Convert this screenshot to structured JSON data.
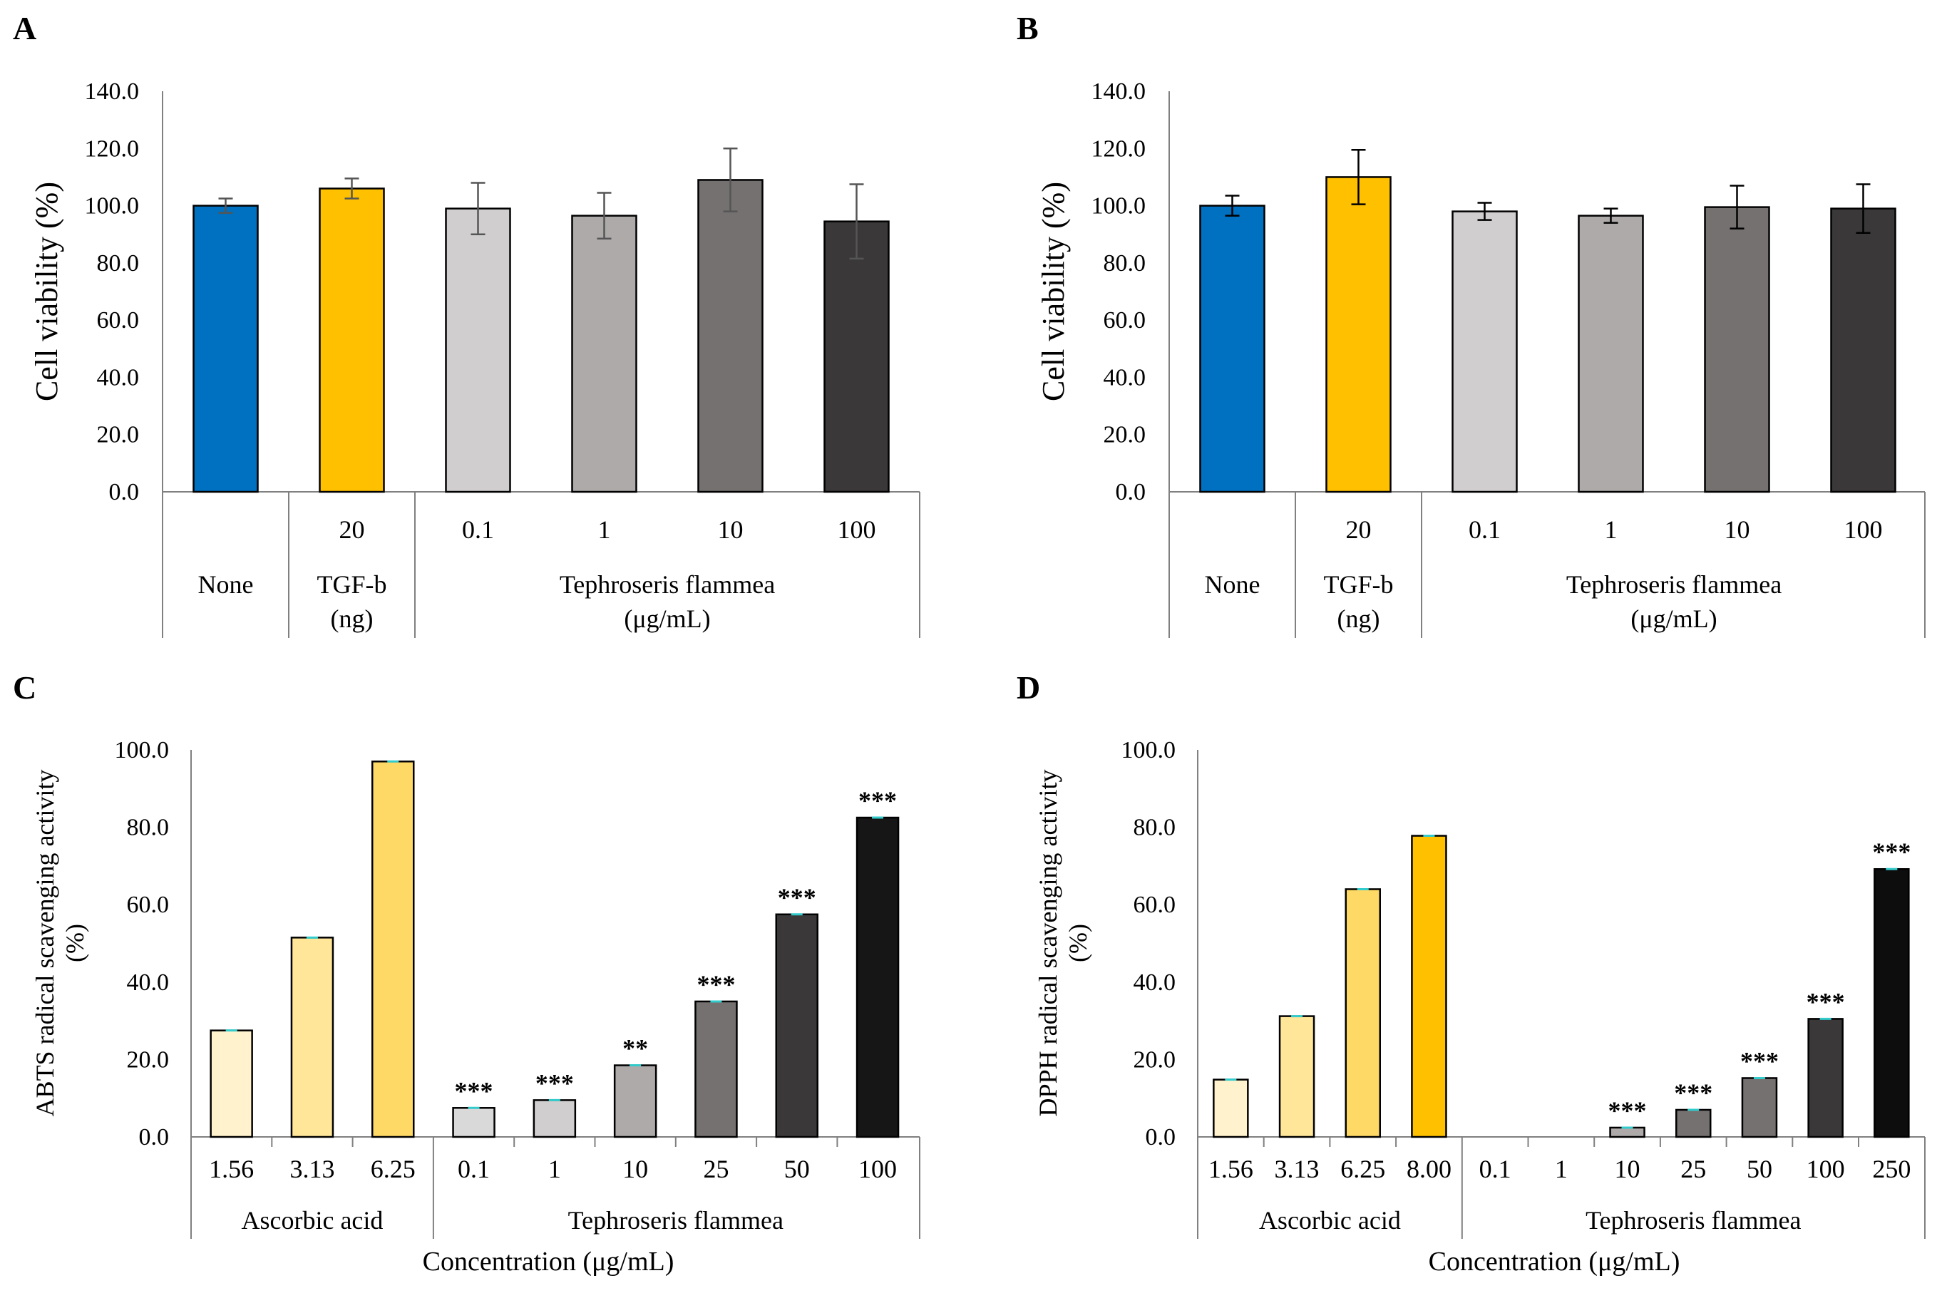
{
  "chart_data": [
    {
      "id": "A",
      "type": "bar",
      "panel_label": "A",
      "title": "",
      "ylabel": "Cell viability (%)",
      "ylim": [
        0,
        140
      ],
      "yticks": [
        "0.0",
        "20.0",
        "40.0",
        "60.0",
        "80.0",
        "100.0",
        "120.0",
        "140.0"
      ],
      "categories": [
        "None",
        "20",
        "0.1",
        "1",
        "10",
        "100"
      ],
      "values": [
        100.0,
        106.0,
        99.0,
        96.5,
        109.0,
        94.5
      ],
      "errors": [
        2.5,
        3.5,
        9.0,
        8.0,
        11.0,
        13.0
      ],
      "colors": [
        "#0070C0",
        "#FFC000",
        "#D0CECE",
        "#AEAAAA",
        "#767171",
        "#3A3838"
      ],
      "groups": [
        {
          "label": "None",
          "sublabel": "",
          "span": [
            0,
            0
          ]
        },
        {
          "label": "TGF-b",
          "sublabel": "(ng)",
          "span": [
            1,
            1
          ]
        },
        {
          "label": "Tephroseris flammea",
          "sublabel": "(μg/mL)",
          "span": [
            2,
            5
          ]
        }
      ],
      "stars": [
        "",
        "",
        "",
        "",
        "",
        ""
      ],
      "xlabel": ""
    },
    {
      "id": "B",
      "type": "bar",
      "panel_label": "B",
      "title": "",
      "ylabel": "Cell viability (%)",
      "ylim": [
        0,
        140
      ],
      "yticks": [
        "0.0",
        "20.0",
        "40.0",
        "60.0",
        "80.0",
        "100.0",
        "120.0",
        "140.0"
      ],
      "categories": [
        "None",
        "20",
        "0.1",
        "1",
        "10",
        "100"
      ],
      "values": [
        100.0,
        110.0,
        98.0,
        96.5,
        99.5,
        99.0
      ],
      "errors": [
        3.5,
        9.5,
        3.0,
        2.5,
        7.5,
        8.5
      ],
      "colors": [
        "#0070C0",
        "#FFC000",
        "#D0CECE",
        "#AEAAAA",
        "#767171",
        "#3A3838"
      ],
      "groups": [
        {
          "label": "None",
          "sublabel": "",
          "span": [
            0,
            0
          ]
        },
        {
          "label": "TGF-b",
          "sublabel": "(ng)",
          "span": [
            1,
            1
          ]
        },
        {
          "label": "Tephroseris flammea",
          "sublabel": "(μg/mL)",
          "span": [
            2,
            5
          ]
        }
      ],
      "stars": [
        "",
        "",
        "",
        "",
        "",
        ""
      ],
      "xlabel": ""
    },
    {
      "id": "C",
      "type": "bar",
      "panel_label": "C",
      "title": "",
      "ylabel": "ABTS radical scavenging activity",
      "ylabel2": "(%)",
      "ylim": [
        0,
        100
      ],
      "yticks": [
        "0.0",
        "20.0",
        "40.0",
        "60.0",
        "80.0",
        "100.0"
      ],
      "categories": [
        "1.56",
        "3.13",
        "6.25",
        "0.1",
        "1",
        "10",
        "25",
        "50",
        "100"
      ],
      "values": [
        27.5,
        51.5,
        97.0,
        7.5,
        9.5,
        18.5,
        35.0,
        57.5,
        82.5
      ],
      "errors": [
        0.3,
        0.3,
        0.3,
        0.3,
        0.3,
        0.3,
        0.3,
        0.3,
        0.3
      ],
      "colors": [
        "#FFF2CC",
        "#FFE699",
        "#FFD966",
        "#D9D9D9",
        "#D0CECE",
        "#AEAAAA",
        "#767171",
        "#3A3838",
        "#161616"
      ],
      "groups": [
        {
          "label": "Ascorbic acid",
          "sublabel": "",
          "span": [
            0,
            2
          ]
        },
        {
          "label": "Tephroseris flammea",
          "sublabel": "",
          "span": [
            3,
            8
          ]
        }
      ],
      "stars": [
        "",
        "",
        "",
        "***",
        "***",
        "**",
        "***",
        "***",
        "***"
      ],
      "xlabel": "Concentration (μg/mL)"
    },
    {
      "id": "D",
      "type": "bar",
      "panel_label": "D",
      "title": "",
      "ylabel": "DPPH radical scavenging activity",
      "ylabel2": "(%)",
      "ylim": [
        0,
        100
      ],
      "yticks": [
        "0.0",
        "20.0",
        "40.0",
        "60.0",
        "80.0",
        "100.0"
      ],
      "categories": [
        "1.56",
        "3.13",
        "6.25",
        "8.00",
        "0.1",
        "1",
        "10",
        "25",
        "50",
        "100",
        "250"
      ],
      "values": [
        14.8,
        31.2,
        64.0,
        77.8,
        0.0,
        0.0,
        2.4,
        7.0,
        15.2,
        30.5,
        69.2
      ],
      "errors": [
        0.3,
        0.3,
        0.3,
        0.3,
        0.0,
        0.0,
        0.3,
        0.3,
        0.3,
        0.3,
        0.3
      ],
      "colors": [
        "#FFF2CC",
        "#FFE699",
        "#FFD966",
        "#FFC000",
        "#D9D9D9",
        "#D0CECE",
        "#AEAAAA",
        "#767171",
        "#767171",
        "#3A3838",
        "#0D0D0D"
      ],
      "groups": [
        {
          "label": "Ascorbic acid",
          "sublabel": "",
          "span": [
            0,
            3
          ]
        },
        {
          "label": "Tephroseris flammea",
          "sublabel": "",
          "span": [
            4,
            10
          ]
        }
      ],
      "stars": [
        "",
        "",
        "",
        "",
        "",
        "",
        "***",
        "***",
        "***",
        "***",
        "***"
      ],
      "xlabel": "Concentration (μg/mL)"
    }
  ]
}
